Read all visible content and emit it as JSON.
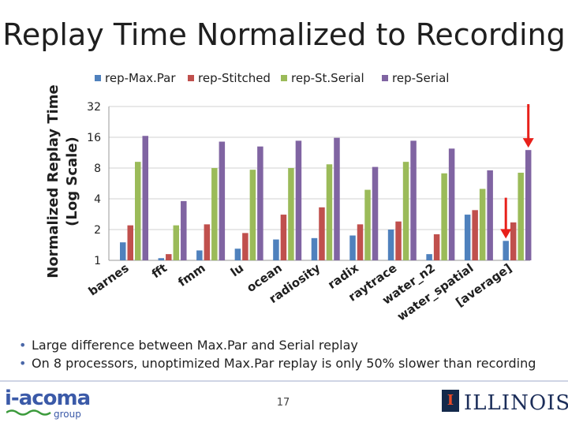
{
  "title": "Replay Time Normalized to Recording",
  "chart_data": {
    "type": "bar",
    "y_scale": "log2",
    "ylabel": "Normalized Replay Time (Log Scale)",
    "ylabel_lines": [
      "Normalized Replay Time",
      "(Log Scale)"
    ],
    "ylim": [
      1,
      32
    ],
    "yticks": [
      1,
      2,
      4,
      8,
      16,
      32
    ],
    "ytick_labels": [
      "1",
      "2",
      "4",
      "8",
      "16",
      "32"
    ],
    "categories": [
      "barnes",
      "fft",
      "fmm",
      "lu",
      "ocean",
      "radiosity",
      "radix",
      "raytrace",
      "water_n2",
      "water_spatial",
      "[average]"
    ],
    "series": [
      {
        "name": "rep-Max.Par",
        "color": "#4f81bd",
        "values": [
          1.5,
          1.05,
          1.25,
          1.3,
          1.6,
          1.65,
          1.75,
          2.0,
          1.15,
          2.8,
          1.55
        ]
      },
      {
        "name": "rep-Stitched",
        "color": "#c0504d",
        "values": [
          2.2,
          1.15,
          2.25,
          1.85,
          2.8,
          3.3,
          2.25,
          2.4,
          1.8,
          3.1,
          2.35
        ]
      },
      {
        "name": "rep-St.Serial",
        "color": "#9bbb59",
        "values": [
          9.2,
          2.2,
          8.0,
          7.7,
          8.0,
          8.7,
          4.9,
          9.2,
          7.1,
          5.0,
          7.2
        ]
      },
      {
        "name": "rep-Serial",
        "color": "#8064a2",
        "values": [
          16.5,
          3.8,
          14.5,
          13.0,
          14.8,
          15.8,
          8.2,
          14.8,
          12.4,
          7.6,
          12.0
        ]
      }
    ],
    "arrows": {
      "color": "#e8201a",
      "categories": [
        "[average]"
      ]
    }
  },
  "bullets": [
    "Large difference between Max.Par and Serial replay",
    "On 8 processors, unoptimized Max.Par replay is only 50% slower than recording"
  ],
  "page_number": "17",
  "footer": {
    "logo_main": "i-acoma",
    "logo_sub": "group",
    "right_logo": "ILLINOIS",
    "right_logo_mark": "I"
  }
}
